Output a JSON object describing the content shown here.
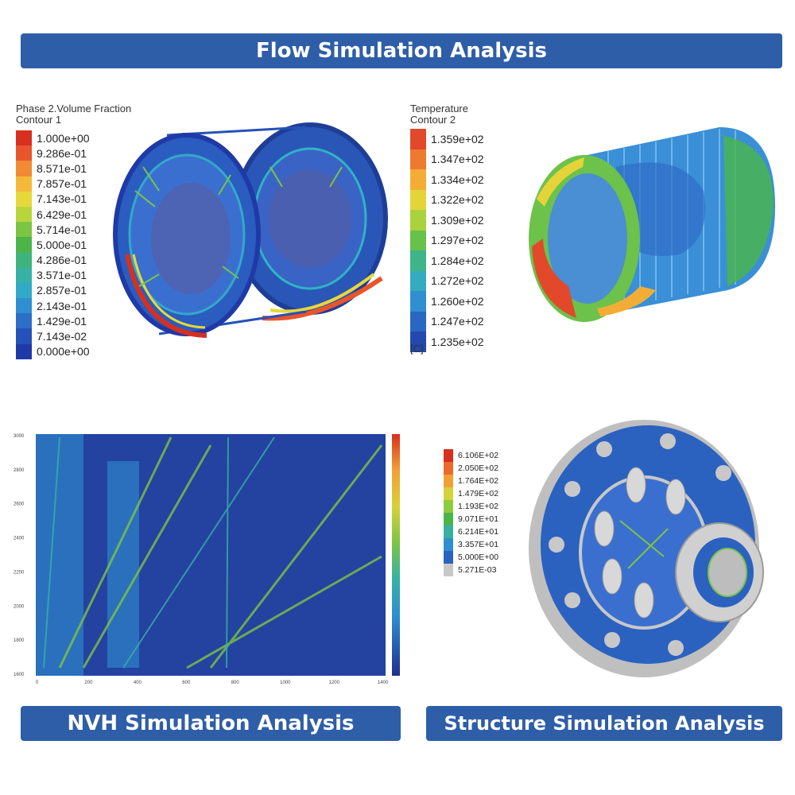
{
  "banners": {
    "flow": "Flow Simulation Analysis",
    "nvh": "NVH Simulation Analysis",
    "structure": "Structure Simulation Analysis"
  },
  "phase_legend": {
    "title": "Phase 2.Volume Fraction",
    "subtitle": "Contour 1",
    "entries": [
      {
        "label": "1.000e+00",
        "color": "#d7301f"
      },
      {
        "label": "9.286e-01",
        "color": "#e9552b"
      },
      {
        "label": "8.571e-01",
        "color": "#f08a35"
      },
      {
        "label": "7.857e-01",
        "color": "#f4b93b"
      },
      {
        "label": "7.143e-01",
        "color": "#e6d83a"
      },
      {
        "label": "6.429e-01",
        "color": "#b8d63c"
      },
      {
        "label": "5.714e-01",
        "color": "#7cc444"
      },
      {
        "label": "5.000e-01",
        "color": "#4bb54a"
      },
      {
        "label": "4.286e-01",
        "color": "#3fb37e"
      },
      {
        "label": "3.571e-01",
        "color": "#37b0a6"
      },
      {
        "label": "2.857e-01",
        "color": "#33a9c8"
      },
      {
        "label": "2.143e-01",
        "color": "#2f8fd1"
      },
      {
        "label": "1.429e-01",
        "color": "#2b6fc7"
      },
      {
        "label": "7.143e-02",
        "color": "#2552b8"
      },
      {
        "label": "0.000e+00",
        "color": "#1f3aa6"
      }
    ]
  },
  "temp_legend": {
    "title": "Temperature",
    "subtitle": "Contour 2",
    "unit": "[C]",
    "entries": [
      {
        "label": "1.359e+02",
        "color": "#e2492a"
      },
      {
        "label": "1.347e+02",
        "color": "#ee7a30"
      },
      {
        "label": "1.334e+02",
        "color": "#f3ad36"
      },
      {
        "label": "1.322e+02",
        "color": "#e3d43a"
      },
      {
        "label": "1.309e+02",
        "color": "#a9d23e"
      },
      {
        "label": "1.297e+02",
        "color": "#67c14a"
      },
      {
        "label": "1.284e+02",
        "color": "#3fb48a"
      },
      {
        "label": "1.272e+02",
        "color": "#34abbf"
      },
      {
        "label": "1.260e+02",
        "color": "#2f8fd1"
      },
      {
        "label": "1.247e+02",
        "color": "#2867c2"
      },
      {
        "label": "1.235e+02",
        "color": "#2348ae"
      }
    ]
  },
  "stress_legend": {
    "entries": [
      {
        "label": "6.106E+02",
        "color": "#d7301f"
      },
      {
        "label": "2.050E+02",
        "color": "#ea6a2c"
      },
      {
        "label": "1.764E+02",
        "color": "#f2a035"
      },
      {
        "label": "1.479E+02",
        "color": "#d6d23a"
      },
      {
        "label": "1.193E+02",
        "color": "#8fcb40"
      },
      {
        "label": "9.071E+01",
        "color": "#4bb54a"
      },
      {
        "label": "6.214E+01",
        "color": "#38b0a0"
      },
      {
        "label": "3.357E+01",
        "color": "#2f8fd1"
      },
      {
        "label": "5.000E+00",
        "color": "#2b62c0"
      },
      {
        "label": "5.271E-03",
        "color": "#c8c8c8"
      }
    ]
  },
  "nvh_plot": {
    "y_ticks": [
      "3000",
      "2800",
      "2600",
      "2400",
      "2200",
      "2000",
      "1800",
      "1600"
    ],
    "x_ticks": [
      "0",
      "200",
      "400",
      "600",
      "800",
      "1000",
      "1200",
      "1400"
    ]
  },
  "colors": {
    "banner": "#2f5ea8",
    "background": "#ffffff"
  }
}
